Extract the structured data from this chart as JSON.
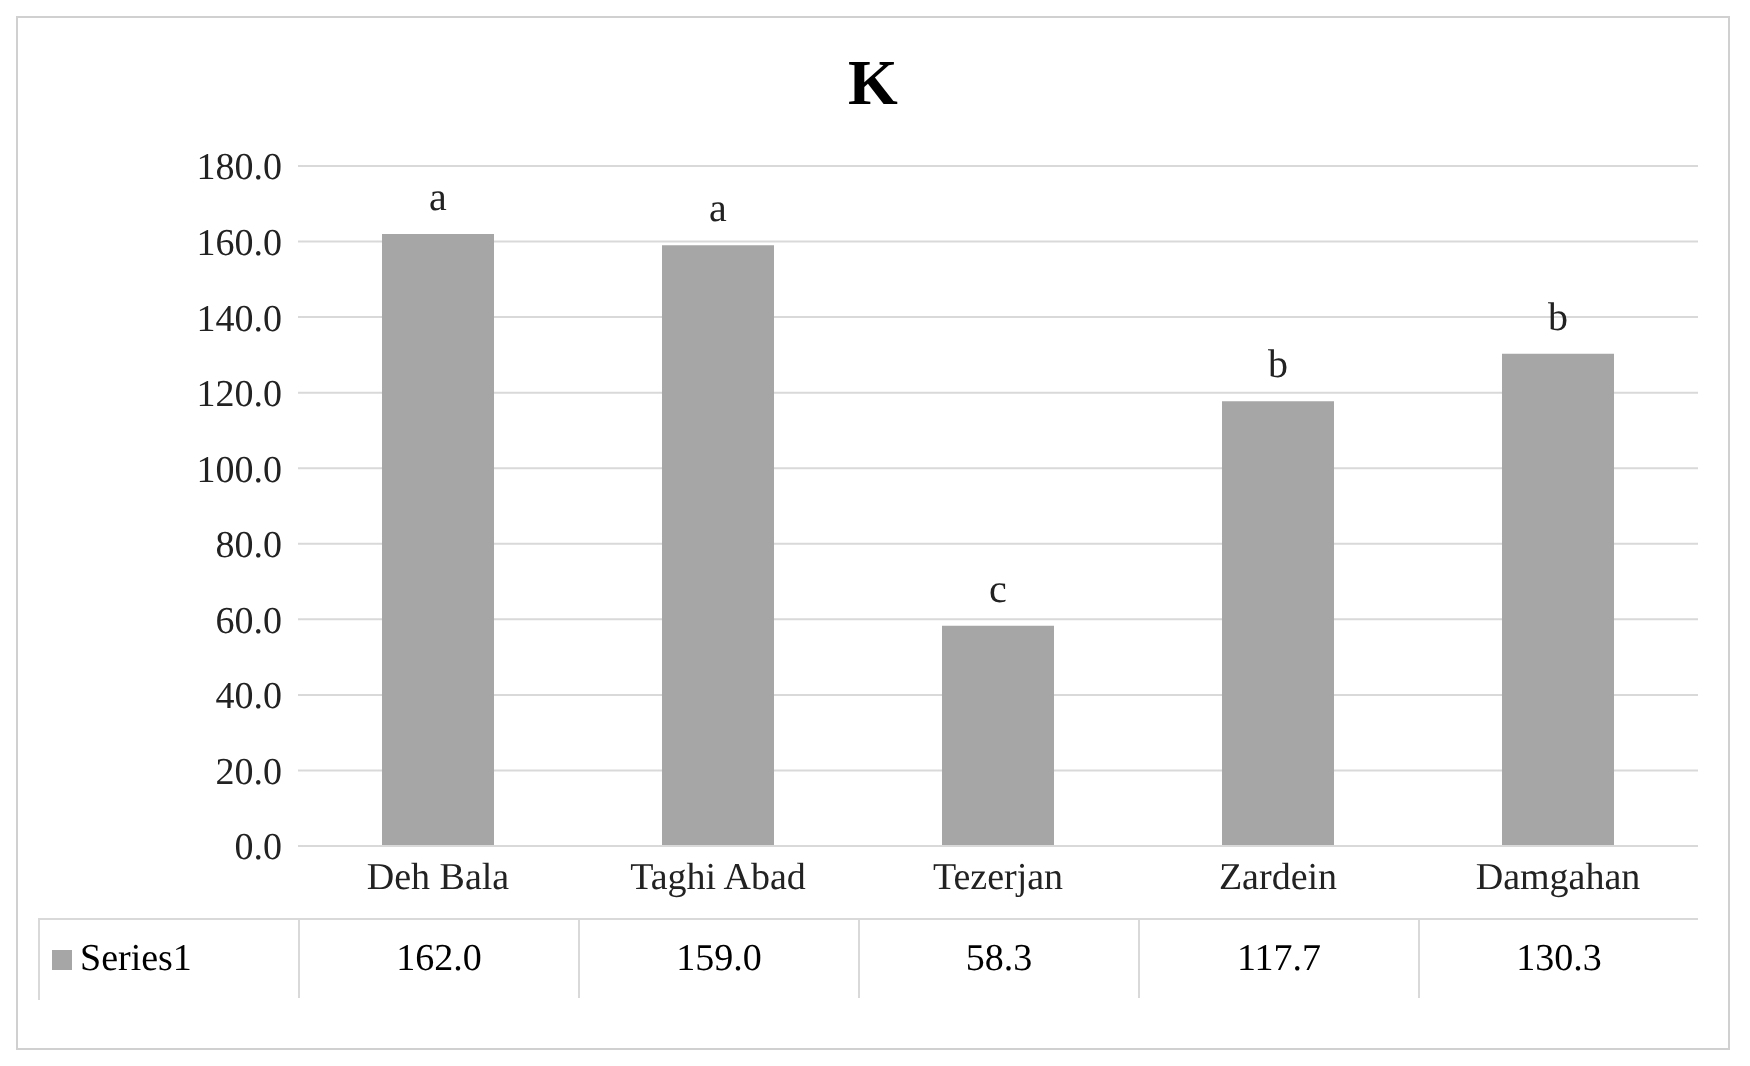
{
  "chart_data": {
    "type": "bar",
    "title": "K",
    "categories": [
      "Deh Bala",
      "Taghi Abad",
      "Tezerjan",
      "Zardein",
      "Damgahan"
    ],
    "series": [
      {
        "name": "Series1",
        "color": "#a6a6a6",
        "values": [
          162.0,
          159.0,
          58.3,
          117.7,
          130.3
        ],
        "value_labels": [
          "162.0",
          "159.0",
          "58.3",
          "117.7",
          "130.3"
        ]
      }
    ],
    "ylim": [
      0,
      180
    ],
    "yticks": [
      {
        "value": 0,
        "label": "0.0"
      },
      {
        "value": 20,
        "label": "20.0"
      },
      {
        "value": 40,
        "label": "40.0"
      },
      {
        "value": 60,
        "label": "60.0"
      },
      {
        "value": 80,
        "label": "80.0"
      },
      {
        "value": 100,
        "label": "100.0"
      },
      {
        "value": 120,
        "label": "120.0"
      },
      {
        "value": 140,
        "label": "140.0"
      },
      {
        "value": 160,
        "label": "160.0"
      },
      {
        "value": 180,
        "label": "180.0"
      }
    ],
    "grid": "y",
    "annotations": [
      {
        "text": "a",
        "x": "Deh Bala",
        "y": 162.0
      },
      {
        "text": "a",
        "x": "Taghi Abad",
        "y": 159.0
      },
      {
        "text": "c",
        "x": "Tezerjan",
        "y": 58.3
      },
      {
        "text": "b",
        "x": "Zardein",
        "y": 117.7
      },
      {
        "text": "b",
        "x": "Damgahan",
        "y": 130.3
      }
    ]
  }
}
